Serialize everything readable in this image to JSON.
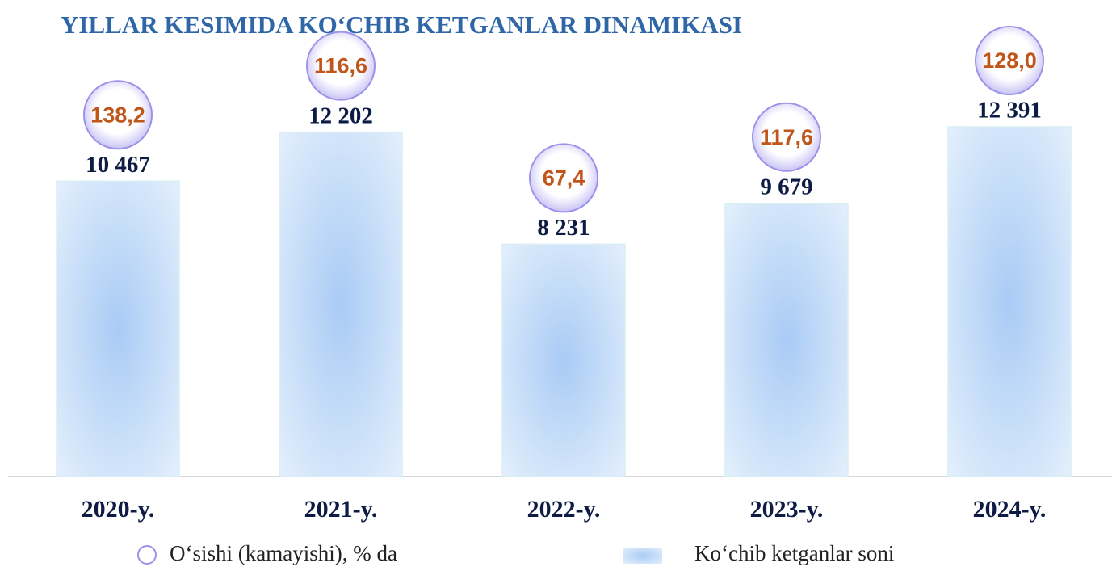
{
  "chart_data": {
    "type": "bar",
    "title": "YILLAR KESIMIDA KO‘CHIB KETGANLAR DINAMIKASI",
    "categories": [
      "2020-y.",
      "2021-y.",
      "2022-y.",
      "2023-y.",
      "2024-y."
    ],
    "series": [
      {
        "name": "Ko‘chib ketganlar soni",
        "color": "#a9cbf5",
        "values": [
          10467,
          12202,
          8231,
          9679,
          12391
        ],
        "value_labels": [
          "10 467",
          "12 202",
          "8 231",
          "9 679",
          "12 391"
        ]
      },
      {
        "name": "O‘sishi (kamayishi), % da",
        "color": "#c0561a",
        "values": [
          138.2,
          116.6,
          67.4,
          117.6,
          128.0
        ],
        "value_labels": [
          "138,2",
          "116,6",
          "67,4",
          "117,6",
          "128,0"
        ]
      }
    ]
  }
}
